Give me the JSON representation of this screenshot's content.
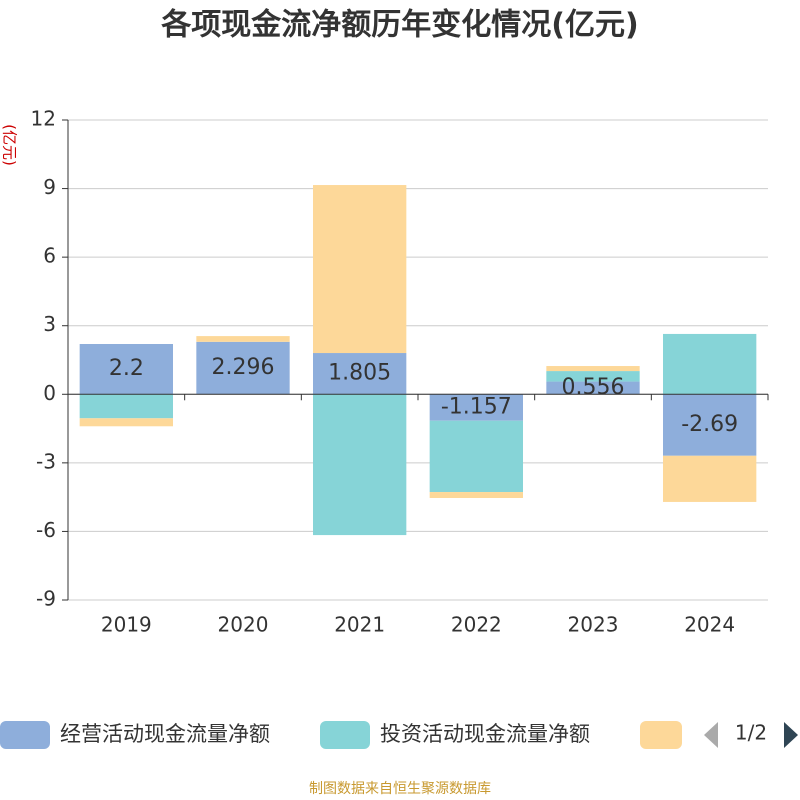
{
  "chart_data": {
    "type": "bar",
    "stacked": true,
    "title": "各项现金流净额历年变化情况(亿元)",
    "y_label": "(亿元)",
    "source": "制图数据来自恒生聚源数据库",
    "legend_page": "1/2",
    "categories": [
      "2019",
      "2020",
      "2021",
      "2022",
      "2023",
      "2024"
    ],
    "series": [
      {
        "name": "经营活动现金流量净额",
        "color": "#8eaedb",
        "values": [
          2.2,
          2.296,
          1.805,
          -1.157,
          0.556,
          -2.69
        ],
        "data_labels": true
      },
      {
        "name": "投资活动现金流量净额",
        "color": "#86d4d7",
        "values": [
          -1.05,
          0,
          -6.16,
          -3.12,
          0.46,
          2.64
        ]
      },
      {
        "color": "#fdd899",
        "values": [
          -0.35,
          0.25,
          7.35,
          -0.26,
          0.22,
          -2.02
        ]
      }
    ],
    "ylim": [
      -9,
      12
    ],
    "yticks": [
      -9,
      -6,
      -3,
      0,
      3,
      6,
      9,
      12
    ],
    "grid": true
  }
}
